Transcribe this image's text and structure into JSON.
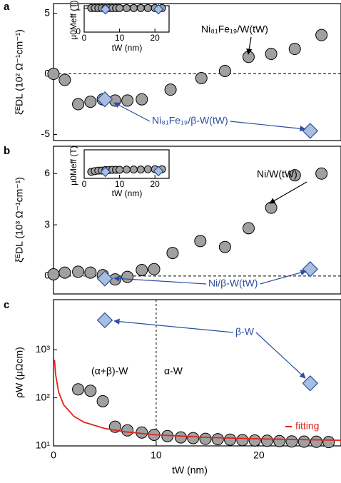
{
  "chart_data": [
    {
      "type": "scatter",
      "panel": "a",
      "ylabel": "ξᴱDL (10² Ω⁻¹cm⁻¹)",
      "xlim": [
        0,
        28
      ],
      "ylim": [
        -5.5,
        5.8
      ],
      "yticks": [
        -5,
        0,
        5
      ],
      "hline": 0,
      "series": [
        {
          "name": "Ni₈₁Fe₁₉/W(tW)",
          "marker": "circle",
          "color": "#a0a0a0",
          "x": [
            0,
            1.1,
            2.4,
            3.6,
            4.8,
            6.0,
            7.2,
            8.6,
            11.4,
            14.4,
            16.7,
            19.0,
            21.2,
            23.5,
            26.1
          ],
          "values": [
            0,
            -0.5,
            -2.5,
            -2.3,
            -2.1,
            -2.2,
            -2.2,
            -2.1,
            -1.3,
            -0.35,
            0.24,
            1.4,
            1.65,
            2.06,
            3.2
          ]
        },
        {
          "name": "Ni₈₁Fe₁₉/β-W(tW)",
          "marker": "diamond",
          "color": "#a8bde0",
          "x": [
            5,
            25
          ],
          "values": [
            -2.1,
            -4.7
          ]
        }
      ]
    },
    {
      "type": "scatter",
      "xlabel": "tW (nm)",
      "ylabel": "μ0Meff (T)",
      "xlim": [
        0,
        24
      ],
      "ylim": [
        0,
        1.1
      ],
      "xticks": [
        0,
        10,
        20
      ],
      "yticks": [
        0,
        1
      ],
      "series": [
        {
          "marker": "circle",
          "color": "#a0a0a0",
          "x": [
            2,
            3,
            4,
            5,
            6,
            7,
            8,
            9,
            10,
            12,
            14,
            16,
            18,
            20,
            22
          ],
          "values": [
            1,
            1,
            1,
            1,
            1,
            1,
            1,
            1,
            1,
            1,
            1,
            1,
            1,
            1,
            1
          ]
        },
        {
          "marker": "diamond",
          "color": "#a8bde0",
          "x": [
            6,
            21
          ],
          "values": [
            0.95,
            0.95
          ]
        }
      ]
    },
    {
      "type": "scatter",
      "panel": "b",
      "ylabel": "ξᴱDL (10³ Ω⁻¹cm⁻¹)",
      "xlim": [
        0,
        28
      ],
      "ylim": [
        -1.05,
        7.6
      ],
      "yticks": [
        0,
        3,
        6
      ],
      "hline": 0,
      "series": [
        {
          "name": "Ni/W(tW)",
          "marker": "circle",
          "color": "#a0a0a0",
          "x": [
            0,
            1.1,
            2.4,
            3.6,
            4.8,
            6.0,
            7.2,
            8.6,
            9.8,
            11.6,
            14.3,
            16.7,
            19.0,
            21.2,
            23.5,
            26.1
          ],
          "values": [
            0.1,
            0.2,
            0.25,
            0.2,
            0.05,
            -0.2,
            -0.05,
            0.35,
            0.4,
            1.35,
            2.05,
            1.7,
            2.8,
            4.0,
            5.9,
            6.0
          ]
        },
        {
          "name": "Ni/β-W(tW)",
          "marker": "diamond",
          "color": "#a8bde0",
          "x": [
            5,
            25
          ],
          "values": [
            -0.15,
            0.4
          ]
        }
      ]
    },
    {
      "type": "scatter",
      "xlabel": "tW (nm)",
      "ylabel": "μ0Meff (T)",
      "xlim": [
        0,
        24
      ],
      "ylim": [
        0,
        1.1
      ],
      "xticks": [
        0,
        10,
        20
      ],
      "series": [
        {
          "marker": "circle",
          "color": "#a0a0a0",
          "x": [
            2,
            3,
            4,
            5,
            6,
            7,
            8,
            9,
            10,
            12,
            14,
            16,
            18,
            20,
            22
          ],
          "values": [
            0.25,
            0.28,
            0.3,
            0.3,
            0.32,
            0.32,
            0.33,
            0.33,
            0.33,
            0.34,
            0.34,
            0.34,
            0.35,
            0.35,
            0.35
          ]
        },
        {
          "marker": "diamond",
          "color": "#a8bde0",
          "x": [
            6,
            21
          ],
          "values": [
            0.25,
            0.28
          ]
        }
      ]
    },
    {
      "type": "scatter",
      "panel": "c",
      "xlabel": "tW (nm)",
      "ylabel": "ρW (μΩcm)",
      "log_y": true,
      "xlim": [
        0,
        28
      ],
      "ylim": [
        10,
        11000
      ],
      "xticks": [
        0,
        10,
        20
      ],
      "yticks": [
        {
          "value": 10,
          "label": "10¹"
        },
        {
          "value": 100,
          "label": "10²"
        },
        {
          "value": 1000,
          "label": "10³"
        }
      ],
      "vline": 10,
      "annotations": [
        "(α+β)-W",
        "α-W"
      ],
      "series": [
        {
          "marker": "circle",
          "color": "#a0a0a0",
          "x": [
            2.4,
            3.6,
            4.8,
            6.0,
            7.2,
            8.6,
            9.8,
            11.1,
            12.4,
            13.6,
            14.8,
            16.0,
            17.2,
            18.4,
            19.6,
            20.8,
            22.0,
            23.2,
            24.4,
            25.6,
            26.8
          ],
          "values": [
            150,
            140,
            85,
            25,
            21,
            19,
            17,
            16,
            15,
            14.5,
            14,
            13.8,
            13.5,
            13.2,
            13,
            12.8,
            12.6,
            12.4,
            12.3,
            12.2,
            12
          ]
        },
        {
          "name": "β-W",
          "marker": "diamond",
          "color": "#a8bde0",
          "x": [
            5,
            25
          ],
          "values": [
            4100,
            200
          ]
        },
        {
          "name": "fitting",
          "marker": "line",
          "color": "#e0241b",
          "x": [
            0.1,
            0.2,
            0.5,
            1,
            2,
            3,
            5,
            7,
            10,
            15,
            20,
            28
          ],
          "values": [
            611,
            311,
            131,
            71,
            41,
            31,
            23,
            19.6,
            17,
            15,
            14,
            13.1
          ]
        }
      ]
    }
  ]
}
